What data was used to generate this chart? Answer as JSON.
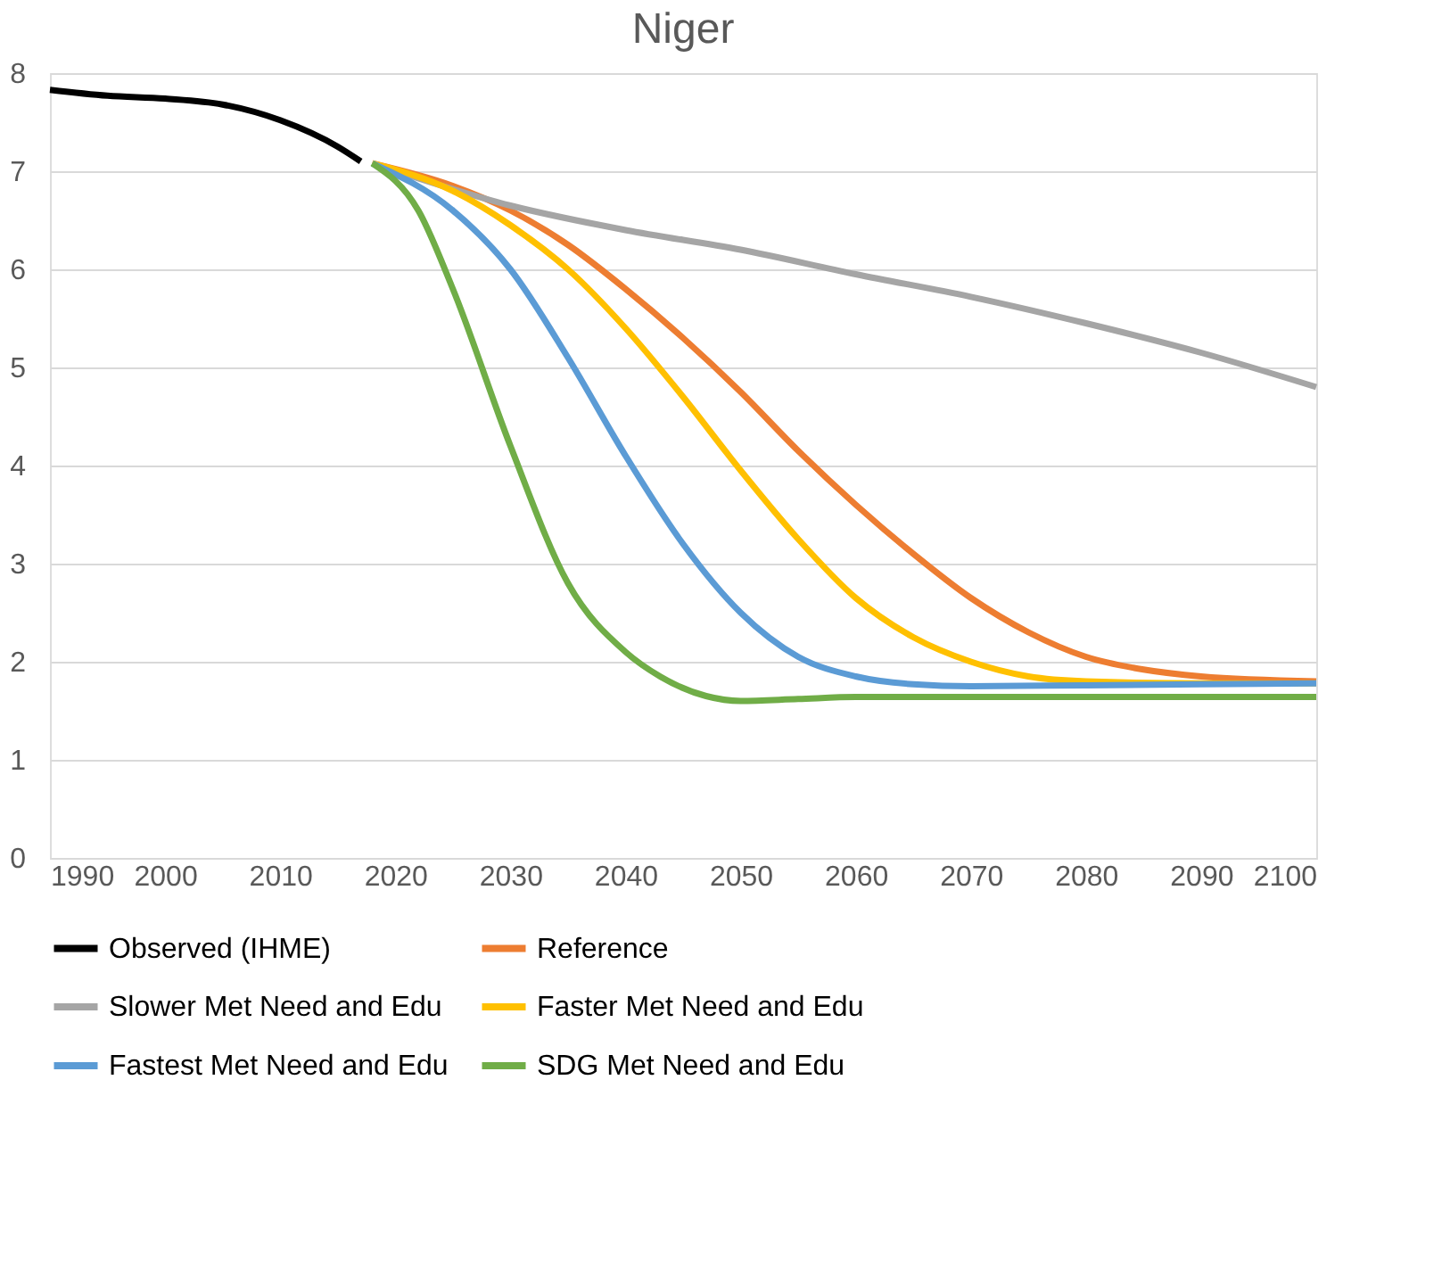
{
  "chart_data": {
    "type": "line",
    "title": "Niger",
    "xlim": [
      1990,
      2100
    ],
    "xticks": [
      1990,
      2000,
      2010,
      2020,
      2030,
      2040,
      2050,
      2060,
      2070,
      2080,
      2090,
      2100
    ],
    "ylim": [
      0,
      8
    ],
    "yticks": [
      0,
      1,
      2,
      3,
      4,
      5,
      6,
      7,
      8
    ],
    "grid": "y",
    "legend": "bottom",
    "marker": "none",
    "line_style": "solid",
    "series": [
      {
        "name": "Observed (IHME)",
        "color": "#000000",
        "x": [
          1990,
          1995,
          2000,
          2005,
          2010,
          2015,
          2017
        ],
        "values": [
          7.83,
          7.77,
          7.74,
          7.68,
          7.52,
          7.25,
          7.1
        ]
      },
      {
        "name": "Reference",
        "color": "#ed7d31",
        "x": [
          2018,
          2025,
          2030,
          2035,
          2040,
          2045,
          2050,
          2055,
          2060,
          2065,
          2070,
          2075,
          2080,
          2085,
          2090,
          2100
        ],
        "values": [
          7.08,
          6.85,
          6.6,
          6.25,
          5.8,
          5.3,
          4.75,
          4.15,
          3.6,
          3.1,
          2.65,
          2.3,
          2.05,
          1.92,
          1.85,
          1.8
        ]
      },
      {
        "name": "Slower Met Need and Edu",
        "color": "#a5a5a5",
        "x": [
          2018,
          2030,
          2040,
          2050,
          2060,
          2070,
          2080,
          2090,
          2100
        ],
        "values": [
          7.08,
          6.65,
          6.4,
          6.2,
          5.95,
          5.72,
          5.45,
          5.15,
          4.8
        ]
      },
      {
        "name": "Faster Met Need and Edu",
        "color": "#ffc000",
        "x": [
          2018,
          2025,
          2030,
          2035,
          2040,
          2045,
          2050,
          2055,
          2060,
          2065,
          2070,
          2075,
          2080,
          2090,
          2100
        ],
        "values": [
          7.08,
          6.8,
          6.45,
          6.0,
          5.4,
          4.7,
          3.95,
          3.25,
          2.65,
          2.25,
          2.0,
          1.85,
          1.8,
          1.78,
          1.78
        ]
      },
      {
        "name": "Fastest Met Need and Edu",
        "color": "#5b9bd5",
        "x": [
          2018,
          2025,
          2030,
          2035,
          2040,
          2045,
          2050,
          2055,
          2060,
          2065,
          2070,
          2080,
          2100
        ],
        "values": [
          7.08,
          6.6,
          6.0,
          5.1,
          4.1,
          3.2,
          2.5,
          2.05,
          1.85,
          1.77,
          1.75,
          1.76,
          1.78
        ]
      },
      {
        "name": "SDG Met Need and Edu",
        "color": "#70ad47",
        "x": [
          2018,
          2022,
          2025,
          2030,
          2035,
          2040,
          2043,
          2047,
          2050,
          2055,
          2060,
          2100
        ],
        "values": [
          7.08,
          6.6,
          5.8,
          4.2,
          2.8,
          2.1,
          1.85,
          1.65,
          1.6,
          1.62,
          1.64,
          1.64
        ]
      }
    ]
  }
}
